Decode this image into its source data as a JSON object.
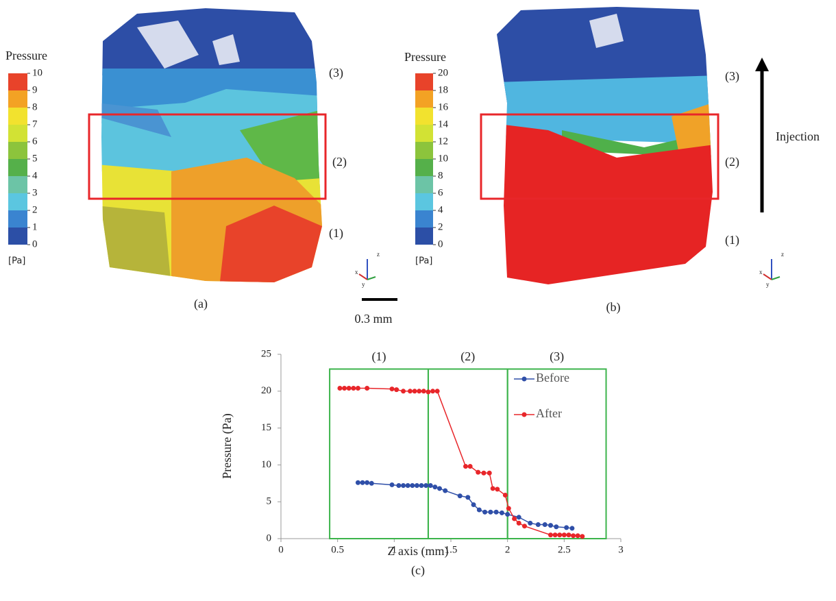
{
  "panel_a": {
    "colorbar_title": "Pressure",
    "unit": "[Pa]",
    "ticks": [
      0,
      1,
      2,
      3,
      4,
      5,
      6,
      7,
      8,
      9,
      10
    ],
    "colors": [
      "#2c4fa6",
      "#3a84d0",
      "#5bc6e0",
      "#6cc4a6",
      "#55b04a",
      "#8cc43c",
      "#d2e234",
      "#f2e22e",
      "#f3a224",
      "#e8432a"
    ],
    "regions": [
      "(3)",
      "(2)",
      "(1)"
    ],
    "caption": "(a)",
    "triad": [
      "z",
      "x",
      "y"
    ]
  },
  "panel_b": {
    "colorbar_title": "Pressure",
    "unit": "[Pa]",
    "ticks": [
      0,
      2,
      4,
      6,
      8,
      10,
      12,
      14,
      16,
      18,
      20
    ],
    "colors": [
      "#2c4fa6",
      "#3a84d0",
      "#5bc6e0",
      "#6cc4a6",
      "#55b04a",
      "#8cc43c",
      "#d2e234",
      "#f2e22e",
      "#f3a224",
      "#e8432a"
    ],
    "regions": [
      "(3)",
      "(2)",
      "(1)"
    ],
    "caption": "(b)",
    "arrow_label": "Injection",
    "triad": [
      "z",
      "x",
      "y"
    ]
  },
  "scale_bar": "0.3 mm",
  "chart_data": {
    "type": "line",
    "xlabel": "Z axis (mm)",
    "ylabel": "Pressure (Pa)",
    "caption": "(c)",
    "xlim": [
      0,
      3
    ],
    "xticks": [
      0,
      0.5,
      1,
      1.5,
      2,
      2.5,
      3
    ],
    "ylim": [
      0,
      25
    ],
    "yticks": [
      0,
      5,
      10,
      15,
      20,
      25
    ],
    "regions": [
      {
        "label": "(1)",
        "x": [
          0.43,
          1.3
        ]
      },
      {
        "label": "(2)",
        "x": [
          1.3,
          2.0
        ]
      },
      {
        "label": "(3)",
        "x": [
          2.0,
          2.87
        ]
      }
    ],
    "region_top": 23,
    "region_color": "#3cb44b",
    "legend": "upper right",
    "series": [
      {
        "name": "Before",
        "color": "#2f4fa8",
        "x": [
          0.68,
          0.72,
          0.76,
          0.8,
          0.98,
          1.04,
          1.08,
          1.12,
          1.16,
          1.2,
          1.24,
          1.28,
          1.32,
          1.36,
          1.4,
          1.45,
          1.58,
          1.65,
          1.7,
          1.75,
          1.8,
          1.85,
          1.9,
          1.95,
          2.0,
          2.1,
          2.2,
          2.27,
          2.33,
          2.38,
          2.43,
          2.52,
          2.57
        ],
        "values": [
          7.6,
          7.6,
          7.6,
          7.5,
          7.3,
          7.2,
          7.2,
          7.2,
          7.2,
          7.2,
          7.2,
          7.2,
          7.2,
          7.0,
          6.8,
          6.5,
          5.8,
          5.6,
          4.6,
          3.9,
          3.6,
          3.6,
          3.6,
          3.5,
          3.3,
          2.9,
          2.1,
          1.9,
          1.9,
          1.8,
          1.6,
          1.5,
          1.4
        ]
      },
      {
        "name": "After",
        "color": "#e8262a",
        "x": [
          0.52,
          0.56,
          0.6,
          0.64,
          0.68,
          0.76,
          0.98,
          1.02,
          1.08,
          1.14,
          1.18,
          1.22,
          1.26,
          1.3,
          1.34,
          1.38,
          1.63,
          1.67,
          1.74,
          1.79,
          1.84,
          1.87,
          1.91,
          1.98,
          2.01,
          2.06,
          2.1,
          2.15,
          2.38,
          2.42,
          2.46,
          2.5,
          2.54,
          2.58,
          2.62,
          2.66
        ],
        "values": [
          20.4,
          20.4,
          20.4,
          20.4,
          20.4,
          20.4,
          20.3,
          20.2,
          20.0,
          20.0,
          20.0,
          20.0,
          20.0,
          19.9,
          20.0,
          20.0,
          9.8,
          9.8,
          9.0,
          8.9,
          8.9,
          6.8,
          6.7,
          5.9,
          4.1,
          2.7,
          2.1,
          1.7,
          0.5,
          0.5,
          0.5,
          0.5,
          0.5,
          0.4,
          0.4,
          0.3
        ]
      }
    ]
  }
}
